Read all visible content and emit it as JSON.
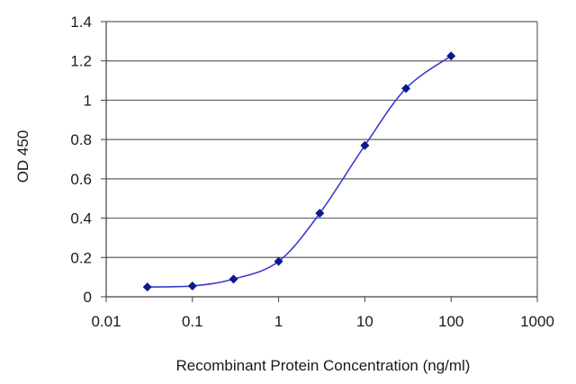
{
  "chart_data": {
    "type": "line",
    "title": "",
    "xlabel": "Recombinant Protein Concentration (ng/ml)",
    "ylabel": "OD 450",
    "x_scale": "log",
    "xlim": [
      0.01,
      1000
    ],
    "ylim": [
      0,
      1.4
    ],
    "x_ticks": [
      "0.01",
      "0.1",
      "1",
      "10",
      "100",
      "1000"
    ],
    "y_ticks": [
      "0",
      "0.2",
      "0.4",
      "0.6",
      "0.8",
      "1",
      "1.2",
      "1.4"
    ],
    "grid": "horizontal",
    "legend": "none",
    "series": [
      {
        "x": [
          0.03,
          0.1,
          0.3,
          1,
          3,
          10,
          30,
          100
        ],
        "y": [
          0.05,
          0.055,
          0.09,
          0.18,
          0.425,
          0.77,
          1.06,
          1.225
        ]
      }
    ],
    "colors": {
      "line": "#3b3bd0",
      "marker": "#0a1a8c",
      "grid": "#606060",
      "axis": "#404040"
    }
  }
}
